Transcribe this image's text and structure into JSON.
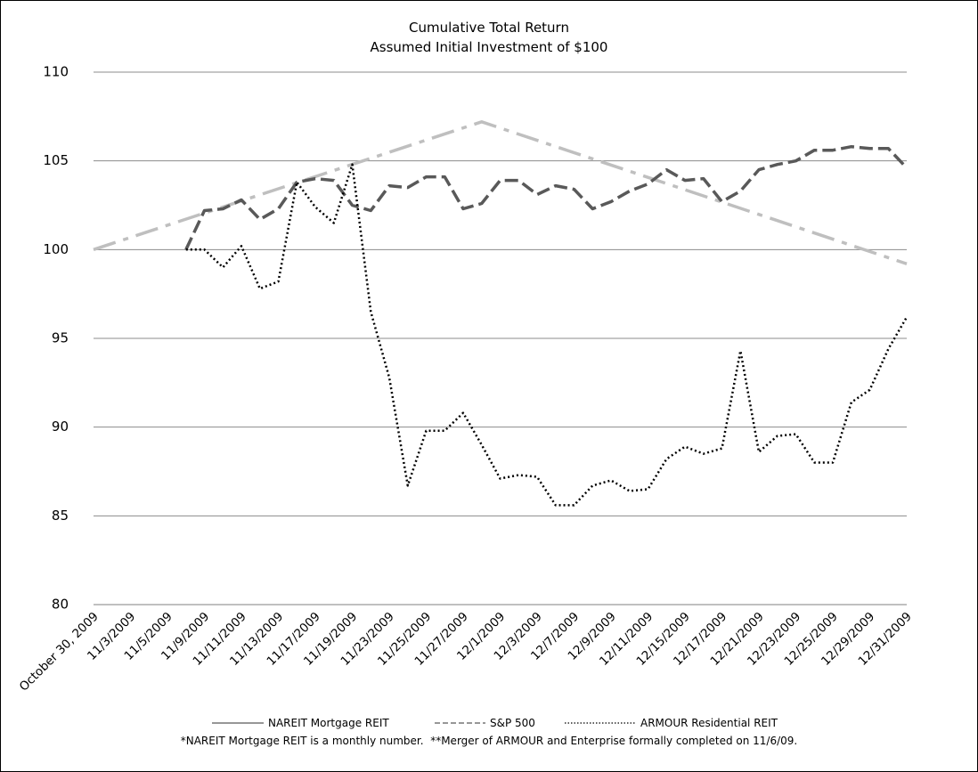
{
  "chart_data": {
    "type": "line",
    "title": "Cumulative Total Return",
    "subtitle": "Assumed Initial Investment of $100",
    "footnote": "*NAREIT Mortgage REIT is a monthly number.  **Merger of ARMOUR and Enterprise formally completed on 11/6/09.",
    "categories": [
      "October 30, 2009",
      null,
      "11/3/2009",
      null,
      "11/5/2009",
      null,
      "11/9/2009",
      null,
      "11/11/2009",
      null,
      "11/13/2009",
      null,
      "11/17/2009",
      null,
      "11/19/2009",
      null,
      "11/23/2009",
      null,
      "11/25/2009",
      null,
      "11/27/2009",
      null,
      "12/1/2009",
      null,
      "12/3/2009",
      null,
      "12/7/2009",
      null,
      "12/9/2009",
      null,
      "12/11/2009",
      null,
      "12/15/2009",
      null,
      "12/17/2009",
      null,
      "12/21/2009",
      null,
      "12/23/2009",
      null,
      "12/25/2009",
      null,
      "12/29/2009",
      null,
      "12/31/2009"
    ],
    "series": [
      {
        "name": "NAREIT Mortgage REIT",
        "color": "#bfbfbf",
        "dash": "dash-dot",
        "span_gaps": true,
        "values": [
          100,
          null,
          null,
          null,
          null,
          null,
          null,
          null,
          null,
          null,
          null,
          null,
          null,
          null,
          null,
          null,
          null,
          null,
          null,
          null,
          null,
          107.2,
          null,
          null,
          null,
          null,
          null,
          null,
          null,
          null,
          null,
          null,
          null,
          null,
          null,
          null,
          null,
          null,
          null,
          null,
          null,
          null,
          null,
          null,
          99.2
        ]
      },
      {
        "name": "S&P 500",
        "color": "#595959",
        "dash": "dashed",
        "values": [
          null,
          null,
          null,
          null,
          null,
          100,
          102.2,
          102.3,
          102.8,
          101.7,
          102.3,
          103.8,
          104.0,
          103.9,
          102.5,
          102.2,
          103.6,
          103.5,
          104.1,
          104.1,
          102.3,
          102.6,
          103.9,
          103.9,
          103.1,
          103.6,
          103.4,
          102.3,
          102.7,
          103.3,
          103.7,
          104.5,
          103.9,
          104.0,
          102.7,
          103.3,
          104.5,
          104.8,
          105.0,
          105.6,
          105.6,
          105.8,
          105.7,
          105.7,
          104.6
        ]
      },
      {
        "name": "ARMOUR Residential REIT",
        "color": "#000000",
        "dash": "dotted",
        "values": [
          null,
          null,
          null,
          null,
          null,
          100,
          100.0,
          99.0,
          100.2,
          97.8,
          98.2,
          103.8,
          102.4,
          101.5,
          104.8,
          96.5,
          92.8,
          86.7,
          89.8,
          89.8,
          90.8,
          89.0,
          87.1,
          87.3,
          87.2,
          85.6,
          85.6,
          86.7,
          87.0,
          86.4,
          86.5,
          88.2,
          88.9,
          88.5,
          88.8,
          94.3,
          88.6,
          89.5,
          89.6,
          88.0,
          88.0,
          91.4,
          92.1,
          94.4,
          96.2
        ]
      }
    ],
    "ylim": [
      80,
      110
    ],
    "yticks": [
      80,
      85,
      90,
      95,
      100,
      105,
      110
    ],
    "grid": true,
    "legend": "bottom"
  }
}
